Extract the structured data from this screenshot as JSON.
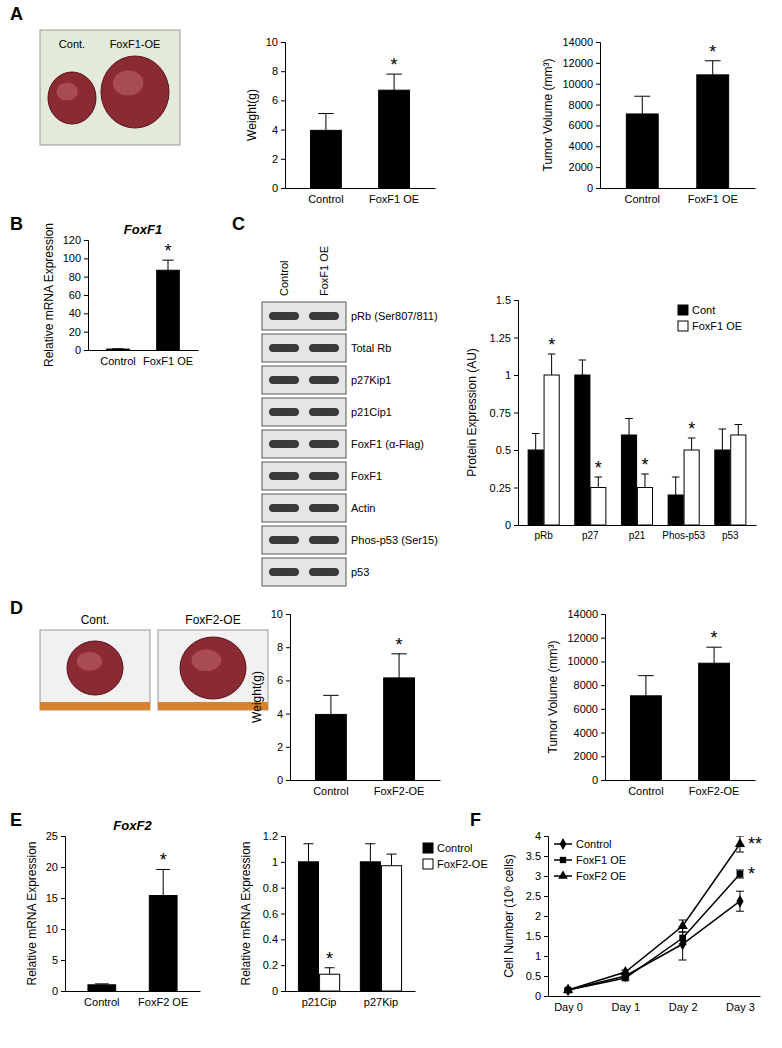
{
  "figure": {
    "panel_labels": [
      "A",
      "B",
      "C",
      "D",
      "E",
      "F"
    ],
    "photo_labels_A": [
      "Cont.",
      "FoxF1-OE"
    ],
    "photo_labels_D": [
      "Cont.",
      "FoxF2-OE"
    ],
    "blot": {
      "lanes": [
        "Control",
        "FoxF1 OE"
      ],
      "rows": [
        "pRb (Ser807/811)",
        "Total Rb",
        "p27Kip1",
        "p21Cip1",
        "FoxF1 (α-Flag)",
        "FoxF1",
        "Actin",
        "Phos-p53 (Ser15)",
        "p53"
      ]
    }
  },
  "chart_data": [
    {
      "type": "bar",
      "y_label": "Weight(g)",
      "categories": [
        "Control",
        "FoxF1 OE"
      ],
      "values": [
        3.95,
        6.7
      ],
      "errors": [
        1.15,
        1.1
      ],
      "significance": [
        null,
        "*"
      ],
      "color": "#000000",
      "ylim": [
        0,
        10
      ],
      "yticks": [
        0,
        2,
        4,
        6,
        8,
        10
      ]
    },
    {
      "type": "bar",
      "y_label": "Tumor Volume (mm³)",
      "categories": [
        "Control",
        "FoxF1 OE"
      ],
      "values": [
        7100,
        10850
      ],
      "errors": [
        1700,
        1350
      ],
      "significance": [
        null,
        "*"
      ],
      "color": "#000000",
      "ylim": [
        0,
        14000
      ],
      "yticks": [
        0,
        2000,
        4000,
        6000,
        8000,
        10000,
        12000,
        14000
      ]
    },
    {
      "type": "bar",
      "title": "FoxF1",
      "y_label": "Relative mRNA Expression",
      "categories": [
        "Control",
        "FoxF1 OE"
      ],
      "values": [
        1,
        87
      ],
      "errors": [
        0.3,
        11
      ],
      "significance": [
        null,
        "*"
      ],
      "color": "#000000",
      "ylim": [
        0,
        120
      ],
      "yticks": [
        0,
        20,
        40,
        60,
        80,
        100,
        120
      ]
    },
    {
      "type": "bar",
      "y_label": "Protein Expression (AU)",
      "categories": [
        "pRb",
        "p27",
        "p21",
        "Phos-p53",
        "p53"
      ],
      "series": [
        {
          "name": "Cont",
          "color": "#000000",
          "values": [
            0.5,
            1.0,
            0.6,
            0.2,
            0.5
          ],
          "errors": [
            0.11,
            0.1,
            0.11,
            0.12,
            0.14
          ]
        },
        {
          "name": "FoxF1 OE",
          "color": "#ffffff",
          "values": [
            1.0,
            0.25,
            0.25,
            0.5,
            0.6
          ],
          "errors": [
            0.14,
            0.07,
            0.09,
            0.08,
            0.07
          ],
          "significance": [
            "*",
            "*",
            "*",
            "*",
            null
          ]
        }
      ],
      "legend": "upper right",
      "ylim": [
        0,
        1.5
      ],
      "yticks": [
        0,
        0.25,
        0.5,
        0.75,
        1,
        1.25,
        1.5
      ]
    },
    {
      "type": "bar",
      "y_label": "Weight(g)",
      "categories": [
        "Control",
        "FoxF2-OE"
      ],
      "values": [
        3.95,
        6.15
      ],
      "errors": [
        1.15,
        1.45
      ],
      "significance": [
        null,
        "*"
      ],
      "color": "#000000",
      "ylim": [
        0,
        10
      ],
      "yticks": [
        0,
        2,
        4,
        6,
        8,
        10
      ]
    },
    {
      "type": "bar",
      "y_label": "Tumor Volume (mm³)",
      "categories": [
        "Control",
        "FoxF2-OE"
      ],
      "values": [
        7100,
        9850
      ],
      "errors": [
        1700,
        1350
      ],
      "significance": [
        null,
        "*"
      ],
      "color": "#000000",
      "ylim": [
        0,
        14000
      ],
      "yticks": [
        0,
        2000,
        4000,
        6000,
        8000,
        10000,
        12000,
        14000
      ]
    },
    {
      "type": "bar",
      "title": "FoxF2",
      "y_label": "Relative mRNA Expression",
      "categories": [
        "Control",
        "FoxF2 OE"
      ],
      "values": [
        1,
        15.4
      ],
      "errors": [
        0.15,
        4.2
      ],
      "significance": [
        null,
        "*"
      ],
      "color": "#000000",
      "ylim": [
        0,
        25
      ],
      "yticks": [
        0,
        5,
        10,
        15,
        20,
        25
      ]
    },
    {
      "type": "bar",
      "y_label": "Relative mRNA Expression",
      "categories": [
        "p21Cip",
        "p27Kip"
      ],
      "series": [
        {
          "name": "Control",
          "color": "#000000",
          "values": [
            1,
            1
          ],
          "errors": [
            0.14,
            0.14
          ]
        },
        {
          "name": "FoxF2-OE",
          "color": "#ffffff",
          "values": [
            0.13,
            0.97
          ],
          "errors": [
            0.05,
            0.09
          ],
          "significance": [
            "*",
            null
          ]
        }
      ],
      "legend": "right",
      "ylim": [
        0,
        1.2
      ],
      "yticks": [
        0,
        0.2,
        0.4,
        0.6,
        0.8,
        1,
        1.2
      ]
    },
    {
      "type": "line",
      "y_label": "Cell Number (10⁶ cells)",
      "categories": [
        "Day 0",
        "Day 1",
        "Day 2",
        "Day 3"
      ],
      "series": [
        {
          "name": "Control",
          "color": "#000000",
          "marker": "diamond",
          "values": [
            0.15,
            0.5,
            1.3,
            2.37
          ],
          "errors": [
            0.02,
            0.05,
            0.4,
            0.25
          ]
        },
        {
          "name": "FoxF1 OE",
          "color": "#000000",
          "marker": "square",
          "values": [
            0.15,
            0.45,
            1.45,
            3.05
          ],
          "errors": [
            0.02,
            0.05,
            0.15,
            0.1
          ],
          "significance": [
            null,
            null,
            null,
            "*"
          ]
        },
        {
          "name": "FoxF2 OE",
          "color": "#000000",
          "marker": "triangle",
          "values": [
            0.15,
            0.6,
            1.75,
            3.8
          ],
          "errors": [
            0.02,
            0.05,
            0.15,
            0.2
          ],
          "significance": [
            null,
            null,
            null,
            "**"
          ]
        }
      ],
      "legend": "upper left",
      "ylim": [
        0,
        4
      ],
      "yticks": [
        0,
        0.5,
        1,
        1.5,
        2,
        2.5,
        3,
        3.5,
        4
      ]
    }
  ]
}
